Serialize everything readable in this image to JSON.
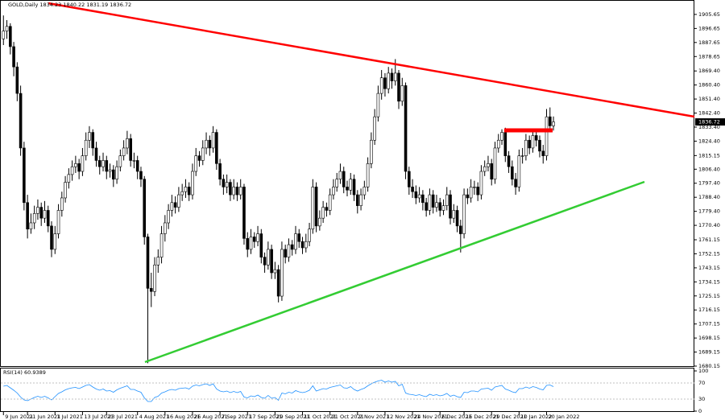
{
  "chart_data": [
    {
      "type": "candlestick",
      "title": "GOLD,Daily",
      "xlim": [
        -1,
        201
      ],
      "ylim": [
        1680.15,
        1914.9
      ],
      "yticks": [
        1905.65,
        1896.65,
        1887.65,
        1878.65,
        {
          "value": 1869.4,
          "label": "1869.40"
        },
        {
          "value": 1860.4,
          "label": "1860.40"
        },
        {
          "value": 1851.4,
          "label": "1851.40"
        },
        {
          "value": 1842.4,
          "label": "1842.40"
        },
        {
          "value": 1833.4,
          "label": "1833.40"
        },
        {
          "value": 1824.4,
          "label": "1824.40"
        },
        1815.15,
        {
          "value": 1806.4,
          "label": "1806.40"
        },
        {
          "value": 1797.4,
          "label": "1797.40"
        },
        {
          "value": 1788.4,
          "label": "1788.40"
        },
        {
          "value": 1779.4,
          "label": "1779.40"
        },
        {
          "value": 1770.4,
          "label": "1770.40"
        },
        1761.15,
        1752.15,
        1743.15,
        1734.15,
        1725.15,
        1716.15,
        1707.15,
        1698.15,
        1689.15,
        1680.15
      ],
      "xticks": [
        {
          "value": 0,
          "label": "9 Jun 2021"
        },
        {
          "value": 7,
          "label": "21 Jun 2021"
        },
        {
          "value": 15,
          "label": "1 Jul 2021"
        },
        {
          "value": 23,
          "label": "13 Jul 2021"
        },
        {
          "value": 30,
          "label": "23 Jul 2021"
        },
        {
          "value": 39,
          "label": "4 Aug 2021"
        },
        {
          "value": 47,
          "label": "16 Aug 2021"
        },
        {
          "value": 55,
          "label": "26 Aug 2021"
        },
        {
          "value": 63,
          "label": "7 Sep 2021"
        },
        {
          "value": 71,
          "label": "17 Sep 2021"
        },
        {
          "value": 79,
          "label": "29 Sep 2021"
        },
        {
          "value": 87,
          "label": "11 Oct 2021"
        },
        {
          "value": 95,
          "label": "21 Oct 2021"
        },
        {
          "value": 103,
          "label": "2 Nov 2021"
        },
        {
          "value": 111,
          "label": "12 Nov 2021"
        },
        {
          "value": 119,
          "label": "24 Nov 2021"
        },
        {
          "value": 127,
          "label": "6 Dec 2021"
        },
        {
          "value": 134,
          "label": "16 Dec 2021"
        },
        {
          "value": 142,
          "label": "29 Dec 2021"
        },
        {
          "value": 150,
          "label": "10 Jan 2022"
        },
        {
          "value": 158,
          "label": "20 Jan 2022"
        }
      ],
      "up_color": "#ffffff",
      "down_color": "#000000",
      "ohlc": [
        [
          1890,
          1905,
          1886,
          1895
        ],
        [
          1895,
          1902,
          1890,
          1898
        ],
        [
          1898,
          1900,
          1880,
          1885
        ],
        [
          1885,
          1888,
          1866,
          1872
        ],
        [
          1872,
          1875,
          1850,
          1855
        ],
        [
          1855,
          1860,
          1815,
          1820
        ],
        [
          1820,
          1824,
          1780,
          1785
        ],
        [
          1785,
          1790,
          1762,
          1768
        ],
        [
          1768,
          1778,
          1765,
          1772
        ],
        [
          1772,
          1783,
          1768,
          1778
        ],
        [
          1778,
          1787,
          1774,
          1782
        ],
        [
          1782,
          1785,
          1770,
          1775
        ],
        [
          1775,
          1786,
          1772,
          1780
        ],
        [
          1780,
          1783,
          1766,
          1770
        ],
        [
          1770,
          1773,
          1750,
          1755
        ],
        [
          1755,
          1770,
          1752,
          1765
        ],
        [
          1765,
          1784,
          1762,
          1780
        ],
        [
          1780,
          1792,
          1776,
          1788
        ],
        [
          1788,
          1802,
          1785,
          1798
        ],
        [
          1798,
          1807,
          1794,
          1803
        ],
        [
          1803,
          1812,
          1799,
          1808
        ],
        [
          1808,
          1815,
          1804,
          1810
        ],
        [
          1810,
          1813,
          1800,
          1805
        ],
        [
          1805,
          1820,
          1802,
          1815
        ],
        [
          1815,
          1830,
          1812,
          1825
        ],
        [
          1825,
          1834,
          1820,
          1830
        ],
        [
          1830,
          1832,
          1815,
          1820
        ],
        [
          1820,
          1824,
          1808,
          1812
        ],
        [
          1812,
          1815,
          1803,
          1808
        ],
        [
          1808,
          1817,
          1805,
          1812
        ],
        [
          1812,
          1815,
          1800,
          1805
        ],
        [
          1805,
          1810,
          1801,
          1806
        ],
        [
          1806,
          1809,
          1795,
          1800
        ],
        [
          1800,
          1812,
          1797,
          1808
        ],
        [
          1808,
          1819,
          1805,
          1815
        ],
        [
          1815,
          1825,
          1812,
          1820
        ],
        [
          1820,
          1831,
          1816,
          1826
        ],
        [
          1826,
          1829,
          1808,
          1812
        ],
        [
          1812,
          1817,
          1807,
          1812
        ],
        [
          1812,
          1815,
          1800,
          1805
        ],
        [
          1805,
          1808,
          1795,
          1800
        ],
        [
          1800,
          1802,
          1758,
          1763
        ],
        [
          1763,
          1765,
          1682,
          1730
        ],
        [
          1730,
          1740,
          1718,
          1728
        ],
        [
          1728,
          1750,
          1725,
          1745
        ],
        [
          1745,
          1755,
          1740,
          1750
        ],
        [
          1750,
          1770,
          1746,
          1765
        ],
        [
          1765,
          1777,
          1760,
          1772
        ],
        [
          1772,
          1784,
          1768,
          1780
        ],
        [
          1780,
          1790,
          1776,
          1785
        ],
        [
          1785,
          1789,
          1778,
          1782
        ],
        [
          1782,
          1795,
          1779,
          1790
        ],
        [
          1790,
          1797,
          1786,
          1792
        ],
        [
          1792,
          1800,
          1788,
          1795
        ],
        [
          1795,
          1798,
          1786,
          1790
        ],
        [
          1790,
          1810,
          1787,
          1805
        ],
        [
          1805,
          1820,
          1802,
          1815
        ],
        [
          1815,
          1818,
          1808,
          1812
        ],
        [
          1812,
          1825,
          1809,
          1820
        ],
        [
          1820,
          1830,
          1816,
          1825
        ],
        [
          1825,
          1828,
          1815,
          1820
        ],
        [
          1820,
          1834,
          1817,
          1830
        ],
        [
          1830,
          1832,
          1806,
          1810
        ],
        [
          1810,
          1813,
          1796,
          1800
        ],
        [
          1800,
          1803,
          1790,
          1795
        ],
        [
          1795,
          1803,
          1791,
          1798
        ],
        [
          1798,
          1800,
          1786,
          1790
        ],
        [
          1790,
          1800,
          1787,
          1795
        ],
        [
          1795,
          1798,
          1786,
          1790
        ],
        [
          1790,
          1800,
          1787,
          1795
        ],
        [
          1795,
          1797,
          1758,
          1762
        ],
        [
          1762,
          1766,
          1750,
          1755
        ],
        [
          1755,
          1768,
          1752,
          1763
        ],
        [
          1763,
          1766,
          1756,
          1760
        ],
        [
          1760,
          1770,
          1757,
          1765
        ],
        [
          1765,
          1768,
          1746,
          1750
        ],
        [
          1750,
          1753,
          1740,
          1745
        ],
        [
          1745,
          1760,
          1742,
          1755
        ],
        [
          1755,
          1758,
          1736,
          1740
        ],
        [
          1740,
          1747,
          1736,
          1742
        ],
        [
          1742,
          1745,
          1721,
          1725
        ],
        [
          1725,
          1760,
          1722,
          1755
        ],
        [
          1755,
          1758,
          1746,
          1750
        ],
        [
          1750,
          1762,
          1747,
          1758
        ],
        [
          1758,
          1761,
          1751,
          1755
        ],
        [
          1755,
          1770,
          1752,
          1765
        ],
        [
          1765,
          1768,
          1756,
          1760
        ],
        [
          1760,
          1763,
          1752,
          1756
        ],
        [
          1756,
          1765,
          1753,
          1760
        ],
        [
          1760,
          1772,
          1757,
          1768
        ],
        [
          1768,
          1800,
          1765,
          1795
        ],
        [
          1795,
          1798,
          1766,
          1770
        ],
        [
          1770,
          1780,
          1767,
          1775
        ],
        [
          1775,
          1786,
          1772,
          1782
        ],
        [
          1782,
          1785,
          1776,
          1780
        ],
        [
          1780,
          1794,
          1777,
          1790
        ],
        [
          1790,
          1800,
          1787,
          1795
        ],
        [
          1795,
          1804,
          1792,
          1800
        ],
        [
          1800,
          1810,
          1797,
          1805
        ],
        [
          1805,
          1808,
          1791,
          1795
        ],
        [
          1795,
          1799,
          1789,
          1793
        ],
        [
          1793,
          1804,
          1790,
          1800
        ],
        [
          1800,
          1803,
          1786,
          1790
        ],
        [
          1790,
          1793,
          1778,
          1783
        ],
        [
          1783,
          1794,
          1780,
          1790
        ],
        [
          1790,
          1799,
          1787,
          1795
        ],
        [
          1795,
          1814,
          1792,
          1810
        ],
        [
          1810,
          1830,
          1807,
          1825
        ],
        [
          1825,
          1845,
          1822,
          1840
        ],
        [
          1840,
          1860,
          1837,
          1855
        ],
        [
          1855,
          1870,
          1851,
          1865
        ],
        [
          1865,
          1868,
          1853,
          1858
        ],
        [
          1858,
          1872,
          1855,
          1868
        ],
        [
          1868,
          1871,
          1858,
          1863
        ],
        [
          1863,
          1877,
          1860,
          1868
        ],
        [
          1868,
          1870,
          1845,
          1850
        ],
        [
          1850,
          1865,
          1847,
          1860
        ],
        [
          1860,
          1862,
          1800,
          1805
        ],
        [
          1805,
          1808,
          1790,
          1795
        ],
        [
          1795,
          1800,
          1788,
          1792
        ],
        [
          1792,
          1796,
          1784,
          1788
        ],
        [
          1788,
          1795,
          1785,
          1790
        ],
        [
          1790,
          1793,
          1780,
          1785
        ],
        [
          1785,
          1788,
          1776,
          1780
        ],
        [
          1780,
          1794,
          1777,
          1790
        ],
        [
          1790,
          1793,
          1778,
          1782
        ],
        [
          1782,
          1790,
          1779,
          1785
        ],
        [
          1785,
          1788,
          1776,
          1780
        ],
        [
          1780,
          1787,
          1777,
          1783
        ],
        [
          1783,
          1795,
          1780,
          1790
        ],
        [
          1790,
          1793,
          1771,
          1775
        ],
        [
          1775,
          1784,
          1772,
          1780
        ],
        [
          1780,
          1783,
          1766,
          1770
        ],
        [
          1770,
          1774,
          1753,
          1765
        ],
        [
          1765,
          1794,
          1762,
          1790
        ],
        [
          1790,
          1794,
          1784,
          1788
        ],
        [
          1788,
          1800,
          1785,
          1795
        ],
        [
          1795,
          1799,
          1790,
          1795
        ],
        [
          1795,
          1798,
          1786,
          1790
        ],
        [
          1790,
          1809,
          1787,
          1805
        ],
        [
          1805,
          1812,
          1802,
          1808
        ],
        [
          1808,
          1815,
          1805,
          1810
        ],
        [
          1810,
          1813,
          1796,
          1800
        ],
        [
          1800,
          1824,
          1797,
          1820
        ],
        [
          1820,
          1829,
          1817,
          1825
        ],
        [
          1825,
          1832,
          1822,
          1830
        ],
        [
          1830,
          1833,
          1811,
          1815
        ],
        [
          1815,
          1818,
          1804,
          1808
        ],
        [
          1808,
          1812,
          1796,
          1800
        ],
        [
          1800,
          1804,
          1790,
          1795
        ],
        [
          1795,
          1819,
          1792,
          1815
        ],
        [
          1815,
          1820,
          1810,
          1815
        ],
        [
          1815,
          1829,
          1812,
          1825
        ],
        [
          1825,
          1828,
          1816,
          1820
        ],
        [
          1820,
          1832,
          1817,
          1828
        ],
        [
          1828,
          1831,
          1821,
          1825
        ],
        [
          1825,
          1828,
          1814,
          1818
        ],
        [
          1818,
          1822,
          1810,
          1815
        ],
        [
          1815,
          1845,
          1812,
          1840
        ],
        [
          1840,
          1846,
          1830,
          1834.23
        ],
        [
          1834.23,
          1840.22,
          1831.19,
          1836.72
        ]
      ]
    },
    {
      "type": "line",
      "title": "RSI(14)",
      "color": "#1e90ff",
      "xlim": [
        -1,
        201
      ],
      "ylim": [
        0,
        100
      ],
      "yticks": [
        0,
        30,
        70,
        100
      ],
      "values": [
        62,
        64,
        58,
        52,
        45,
        35,
        28,
        26,
        30,
        34,
        37,
        34,
        37,
        33,
        28,
        36,
        44,
        48,
        53,
        56,
        58,
        59,
        56,
        60,
        64,
        66,
        60,
        55,
        52,
        55,
        50,
        51,
        47,
        53,
        57,
        60,
        63,
        54,
        54,
        50,
        47,
        33,
        24,
        24,
        34,
        37,
        45,
        48,
        52,
        54,
        52,
        56,
        57,
        58,
        55,
        62,
        65,
        63,
        66,
        68,
        64,
        68,
        55,
        50,
        48,
        50,
        46,
        49,
        46,
        49,
        35,
        33,
        38,
        36,
        40,
        34,
        32,
        39,
        32,
        34,
        27,
        45,
        43,
        47,
        45,
        51,
        48,
        46,
        48,
        52,
        63,
        50,
        53,
        56,
        55,
        59,
        61,
        63,
        65,
        58,
        57,
        61,
        54,
        50,
        54,
        57,
        63,
        68,
        72,
        75,
        77,
        72,
        75,
        72,
        74,
        63,
        67,
        45,
        42,
        41,
        39,
        41,
        38,
        36,
        42,
        39,
        41,
        38,
        40,
        44,
        37,
        40,
        36,
        34,
        47,
        46,
        50,
        50,
        48,
        55,
        56,
        57,
        52,
        60,
        62,
        64,
        55,
        52,
        48,
        46,
        56,
        56,
        60,
        57,
        61,
        59,
        55,
        53,
        64,
        65,
        60.9389
      ]
    }
  ]
}
